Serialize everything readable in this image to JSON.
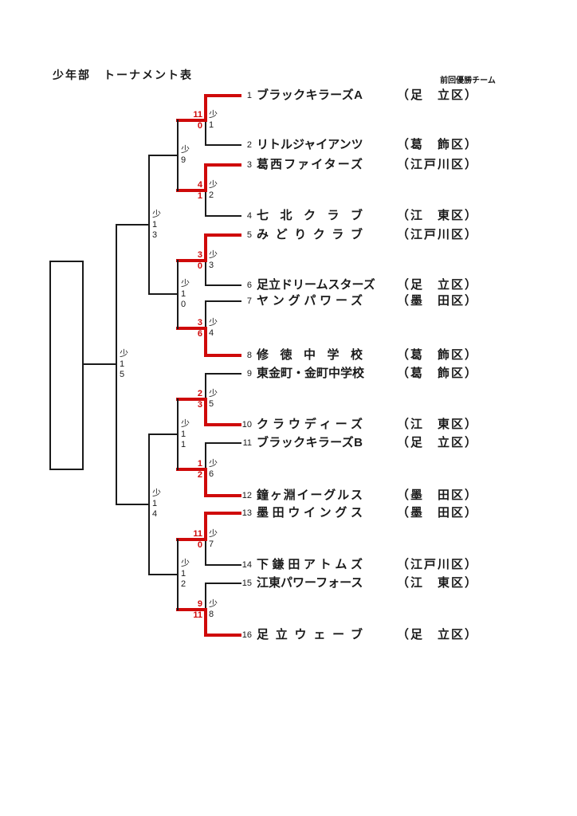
{
  "page": {
    "title": "少年部　トーナメント表",
    "header_note": "前回優勝チーム"
  },
  "colors": {
    "line": "#1a1a1a",
    "winner_path": "#cf0a0a"
  },
  "bracket": {
    "teams": [
      {
        "no": "1",
        "name": "ブラックキラーズA",
        "district": "（足　立区）"
      },
      {
        "no": "2",
        "name": "リトルジャイアンツ",
        "district": "（葛　飾区）"
      },
      {
        "no": "3",
        "name": "葛西ファイターズ",
        "district": "（江戸川区）"
      },
      {
        "no": "4",
        "name": "七北クラブ",
        "district": "（江　東区）"
      },
      {
        "no": "5",
        "name": "みどりクラブ",
        "district": "（江戸川区）"
      },
      {
        "no": "6",
        "name": "足立ドリームスターズ",
        "district": "（足　立区）"
      },
      {
        "no": "7",
        "name": "ヤングパワーズ",
        "district": "（墨　田区）"
      },
      {
        "no": "8",
        "name": "修徳中学校",
        "district": "（葛　飾区）"
      },
      {
        "no": "9",
        "name": "東金町・金町中学校",
        "district": "（葛　飾区）"
      },
      {
        "no": "10",
        "name": "クラウディーズ",
        "district": "（江　東区）"
      },
      {
        "no": "11",
        "name": "ブラックキラーズB",
        "district": "（足　立区）"
      },
      {
        "no": "12",
        "name": "鐘ヶ淵イーグルス",
        "district": "（墨　田区）"
      },
      {
        "no": "13",
        "name": "墨田ウイングス",
        "district": "（墨　田区）"
      },
      {
        "no": "14",
        "name": "下鎌田アトムズ",
        "district": "（江戸川区）"
      },
      {
        "no": "15",
        "name": "江東パワーフォース",
        "district": "（江　東区）"
      },
      {
        "no": "16",
        "name": "足立ウェーブ",
        "district": "（足　立区）"
      }
    ],
    "round1": [
      {
        "label": "少1",
        "score_top": "11",
        "score_bottom": "0",
        "winner": "top"
      },
      {
        "label": "少2",
        "score_top": "4",
        "score_bottom": "1",
        "winner": "top"
      },
      {
        "label": "少3",
        "score_top": "3",
        "score_bottom": "0",
        "winner": "top"
      },
      {
        "label": "少4",
        "score_top": "3",
        "score_bottom": "6",
        "winner": "bottom"
      },
      {
        "label": "少5",
        "score_top": "2",
        "score_bottom": "3",
        "winner": "bottom"
      },
      {
        "label": "少6",
        "score_top": "1",
        "score_bottom": "2",
        "winner": "bottom"
      },
      {
        "label": "少7",
        "score_top": "11",
        "score_bottom": "0",
        "winner": "top"
      },
      {
        "label": "少8",
        "score_top": "9",
        "score_bottom": "11",
        "winner": "bottom"
      }
    ],
    "round2": [
      {
        "label": "少9"
      },
      {
        "label": "少10"
      },
      {
        "label": "少11"
      },
      {
        "label": "少12"
      }
    ],
    "round3": [
      {
        "label": "少13"
      },
      {
        "label": "少14"
      }
    ],
    "final": {
      "label": "少15"
    }
  }
}
